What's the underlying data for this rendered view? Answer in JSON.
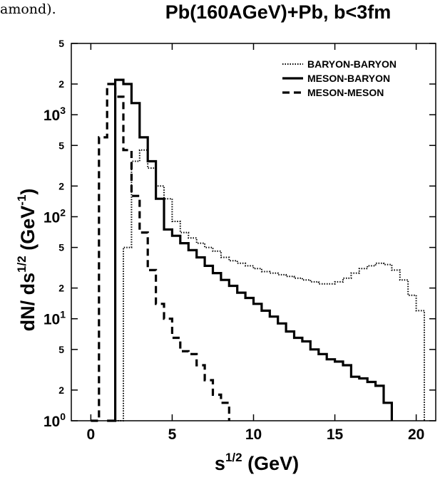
{
  "page_fragment": "amond).",
  "chart_data": {
    "type": "line",
    "title": "Pb(160AGeV)+Pb, b<3fm",
    "xlabel": "s^{1/2} (GeV)",
    "ylabel": "dN/ ds^{1/2} (GeV^{-1})",
    "xlim": [
      -1.2,
      21.2
    ],
    "ylim": [
      1,
      5000
    ],
    "yscale": "log",
    "grid": false,
    "legend_position": "top-right",
    "x_ticks": [
      0,
      5,
      10,
      15,
      20
    ],
    "y_ticks": [
      {
        "value": 1,
        "base": "10",
        "exp": "0"
      },
      {
        "value": 2,
        "label": "2"
      },
      {
        "value": 5,
        "label": "5"
      },
      {
        "value": 10,
        "base": "10",
        "exp": "1"
      },
      {
        "value": 20,
        "label": "2"
      },
      {
        "value": 50,
        "label": "5"
      },
      {
        "value": 100,
        "base": "10",
        "exp": "2"
      },
      {
        "value": 200,
        "label": "2"
      },
      {
        "value": 500,
        "label": "5"
      },
      {
        "value": 1000,
        "base": "10",
        "exp": "3"
      },
      {
        "value": 2000,
        "label": "2"
      },
      {
        "value": 5000,
        "label": "5"
      }
    ],
    "series": [
      {
        "name": "BARYON-BARYON",
        "style": "dotted",
        "x": [
          1.5,
          2.0,
          2.5,
          3.0,
          3.5,
          4.0,
          4.5,
          5.0,
          5.5,
          6.0,
          6.5,
          7.0,
          7.5,
          8.0,
          8.5,
          9.0,
          9.5,
          10.0,
          10.5,
          11.0,
          11.5,
          12.0,
          12.5,
          13.0,
          13.5,
          14.0,
          14.5,
          15.0,
          15.5,
          16.0,
          16.5,
          17.0,
          17.5,
          18.0,
          18.5,
          19.0,
          19.5,
          20.0,
          20.5
        ],
        "y": [
          1,
          50,
          350,
          450,
          300,
          200,
          150,
          90,
          70,
          62,
          55,
          50,
          46,
          40,
          37,
          35,
          33,
          31,
          29,
          28,
          27,
          26,
          25,
          24,
          23,
          22,
          22,
          23,
          25,
          28,
          31,
          33,
          35,
          34,
          30,
          24,
          17,
          12,
          7
        ]
      },
      {
        "name": "MESON-BARYON",
        "style": "solid",
        "x": [
          1.0,
          1.5,
          2.0,
          2.5,
          3.0,
          3.5,
          4.0,
          4.5,
          5.0,
          5.5,
          6.0,
          6.5,
          7.0,
          7.5,
          8.0,
          8.5,
          9.0,
          9.5,
          10.0,
          10.5,
          11.0,
          11.5,
          12.0,
          12.5,
          13.0,
          13.5,
          14.0,
          14.5,
          15.0,
          15.5,
          16.0,
          16.5,
          17.0,
          17.5,
          18.0,
          18.5
        ],
        "y": [
          1,
          2200,
          2000,
          1300,
          600,
          350,
          150,
          75,
          65,
          55,
          47,
          40,
          33,
          28,
          24,
          21,
          18,
          16,
          14,
          12,
          10.5,
          9,
          7.5,
          6.5,
          6.0,
          5.0,
          4.5,
          4.0,
          3.8,
          3.5,
          2.7,
          2.6,
          2.4,
          2.2,
          1.5,
          1
        ]
      },
      {
        "name": "MESON-MESON",
        "style": "dashed",
        "x": [
          0.0,
          0.5,
          1.0,
          1.5,
          2.0,
          2.5,
          3.0,
          3.5,
          4.0,
          4.5,
          5.0,
          5.5,
          6.0,
          6.5,
          7.0,
          7.5,
          8.0,
          8.5
        ],
        "y": [
          1,
          600,
          2000,
          1500,
          450,
          160,
          70,
          30,
          14,
          10,
          6.5,
          4.8,
          4.5,
          3.5,
          2.5,
          1.8,
          1.5,
          1
        ]
      }
    ]
  }
}
